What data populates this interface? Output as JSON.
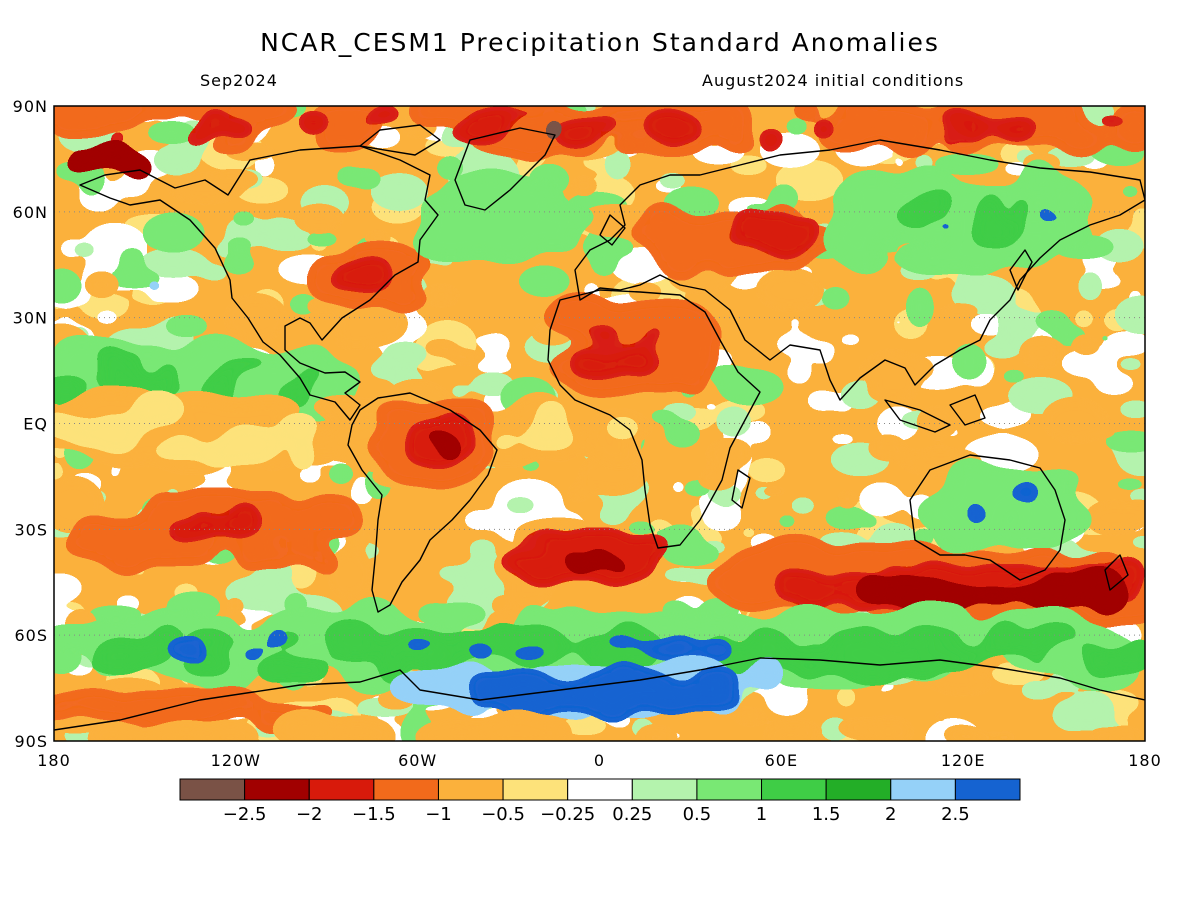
{
  "title": "NCAR_CESM1 Precipitation Standard Anomalies",
  "subtitle_left": "Sep2024",
  "subtitle_right": "August2024 initial conditions",
  "lat_labels": [
    "90N",
    "60N",
    "30N",
    "EQ",
    "30S",
    "60S",
    "90S"
  ],
  "lat_values": [
    90,
    60,
    30,
    0,
    -30,
    -60,
    -90
  ],
  "lon_labels": [
    "180",
    "120W",
    "60W",
    "0",
    "60E",
    "120E",
    "180"
  ],
  "lon_values": [
    -180,
    -120,
    -60,
    0,
    60,
    120,
    180
  ],
  "colorbar": {
    "colors": [
      "#7a5246",
      "#a10000",
      "#d81a0b",
      "#f26a1b",
      "#fbb13c",
      "#fde27a",
      "#ffffff",
      "#b4f3ad",
      "#79e874",
      "#3fcd46",
      "#23ae27",
      "#95d1f8",
      "#1563d1"
    ],
    "labels": [
      "-2.5",
      "-2",
      "-1.5",
      "-1",
      "-0.5",
      "-0.25",
      "0.25",
      "0.5",
      "1",
      "1.5",
      "2",
      "2.5"
    ],
    "label_values": [
      -2.5,
      -2,
      -1.5,
      -1,
      -0.5,
      -0.25,
      0.25,
      0.5,
      1,
      1.5,
      2,
      2.5
    ]
  },
  "map_data": {
    "type": "heatmap",
    "projection": "equirectangular",
    "lon_range": [
      -180,
      180
    ],
    "lat_range": [
      -90,
      90
    ],
    "variable": "precipitation standard anomaly",
    "grid_lines": "dotted gray at 30-degree intervals",
    "coastlines": true,
    "anomaly_regions": [
      {
        "region": "Arctic / Greenland north",
        "value": -2
      },
      {
        "region": "Northern Africa / Sahel",
        "value": -1
      },
      {
        "region": "Northern South America / Amazon",
        "value": -1.5
      },
      {
        "region": "Eastern North America",
        "value": -1.5
      },
      {
        "region": "Southern Ocean 40S-55S (Indian/Australian sector)",
        "value": -2
      },
      {
        "region": "South Atlantic 40S",
        "value": -1.5
      },
      {
        "region": "Tropical Pacific north of equator",
        "value": 1
      },
      {
        "region": "Antarctica",
        "value": 2.5
      },
      {
        "region": "Southern Ocean 60S",
        "value": 1.5
      },
      {
        "region": "Siberia / northern Asia",
        "value": 1
      },
      {
        "region": "Australia",
        "value": 1
      },
      {
        "region": "Equatorial Atlantic / Pacific",
        "value": -0.5
      }
    ]
  }
}
